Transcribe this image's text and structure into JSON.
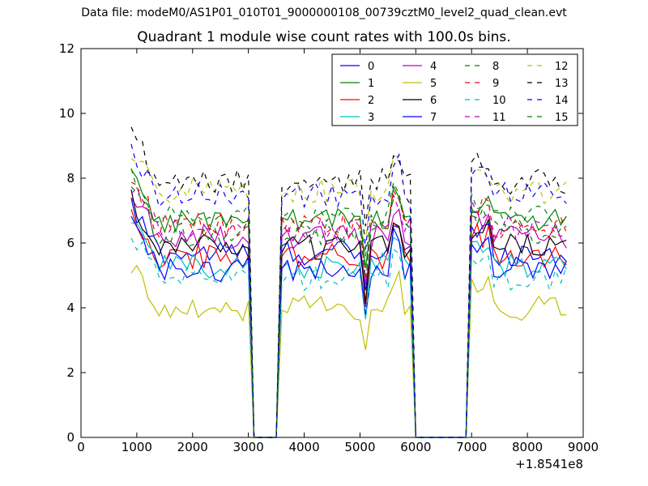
{
  "figure": {
    "suptitle": "Data file: modeM0/AS1P01_010T01_9000000108_00739cztM0_level2_quad_clean.evt"
  },
  "chart_data": {
    "type": "line",
    "title": "Quadrant 1 module wise count rates with 100.0s bins.",
    "xlabel": "",
    "ylabel": "",
    "xlim": [
      0,
      9000
    ],
    "ylim": [
      0,
      12
    ],
    "x_offset_label": "+1.8541e8",
    "xticks": [
      0,
      1000,
      2000,
      3000,
      4000,
      5000,
      6000,
      7000,
      8000,
      9000
    ],
    "yticks": [
      0,
      2,
      4,
      6,
      8,
      10,
      12
    ],
    "grid": false,
    "legend": {
      "placement": "top-right",
      "columns": 4
    },
    "series": [
      {
        "name": "0",
        "color": "#0000ff",
        "dash": "solid",
        "level": 5.7
      },
      {
        "name": "1",
        "color": "#008000",
        "dash": "solid",
        "level": 6.7
      },
      {
        "name": "2",
        "color": "#ff0000",
        "dash": "solid",
        "level": 5.6
      },
      {
        "name": "3",
        "color": "#00bfbf",
        "dash": "solid",
        "level": 5.3
      },
      {
        "name": "4",
        "color": "#bf00bf",
        "dash": "solid",
        "level": 6.2
      },
      {
        "name": "5",
        "color": "#bfbf00",
        "dash": "solid",
        "level": 4.0
      },
      {
        "name": "6",
        "color": "#000000",
        "dash": "solid",
        "level": 5.9
      },
      {
        "name": "7",
        "color": "#0000ff",
        "dash": "solid",
        "level": 5.2
      },
      {
        "name": "8",
        "color": "#008000",
        "dash": "dashed",
        "level": 6.8
      },
      {
        "name": "9",
        "color": "#ff0000",
        "dash": "dashed",
        "level": 6.5
      },
      {
        "name": "10",
        "color": "#00bfbf",
        "dash": "dashed",
        "level": 4.9
      },
      {
        "name": "11",
        "color": "#bf00bf",
        "dash": "dashed",
        "level": 6.4
      },
      {
        "name": "12",
        "color": "#bfbf00",
        "dash": "dashed",
        "level": 7.6
      },
      {
        "name": "13",
        "color": "#000000",
        "dash": "dashed",
        "level": 7.9
      },
      {
        "name": "14",
        "color": "#0000ff",
        "dash": "dashed",
        "level": 7.5
      },
      {
        "name": "15",
        "color": "#008000",
        "dash": "dashed",
        "level": 6.3
      }
    ],
    "segments": [
      {
        "x_start": 900,
        "x_end": 3050,
        "x_drop_end": 3200
      },
      {
        "x_start": 3600,
        "x_end": 5950,
        "x_drop_end": 6000
      },
      {
        "x_start": 7000,
        "x_end": 8700,
        "x_drop_end": 8700
      }
    ],
    "x_sample": [
      900,
      1000,
      1100,
      1200,
      1300,
      1400,
      1500,
      1600,
      1700,
      1800,
      1900,
      2000,
      2100,
      2200,
      2300,
      2400,
      2500,
      2600,
      2700,
      2800,
      2900,
      3000,
      3100,
      3200,
      3300,
      3400,
      3500,
      3600,
      3700,
      3800,
      3900,
      4000,
      4100,
      4200,
      4300,
      4400,
      4500,
      4600,
      4700,
      4800,
      4900,
      5000,
      5100,
      5200,
      5300,
      5400,
      5500,
      5600,
      5700,
      5800,
      5900,
      6000,
      6100,
      6200,
      6300,
      6400,
      6500,
      6600,
      6700,
      6800,
      6900,
      7000,
      7100,
      7200,
      7300,
      7400,
      7500,
      7600,
      7700,
      7800,
      7900,
      8000,
      8100,
      8200,
      8300,
      8400,
      8500,
      8600,
      8700
    ]
  }
}
